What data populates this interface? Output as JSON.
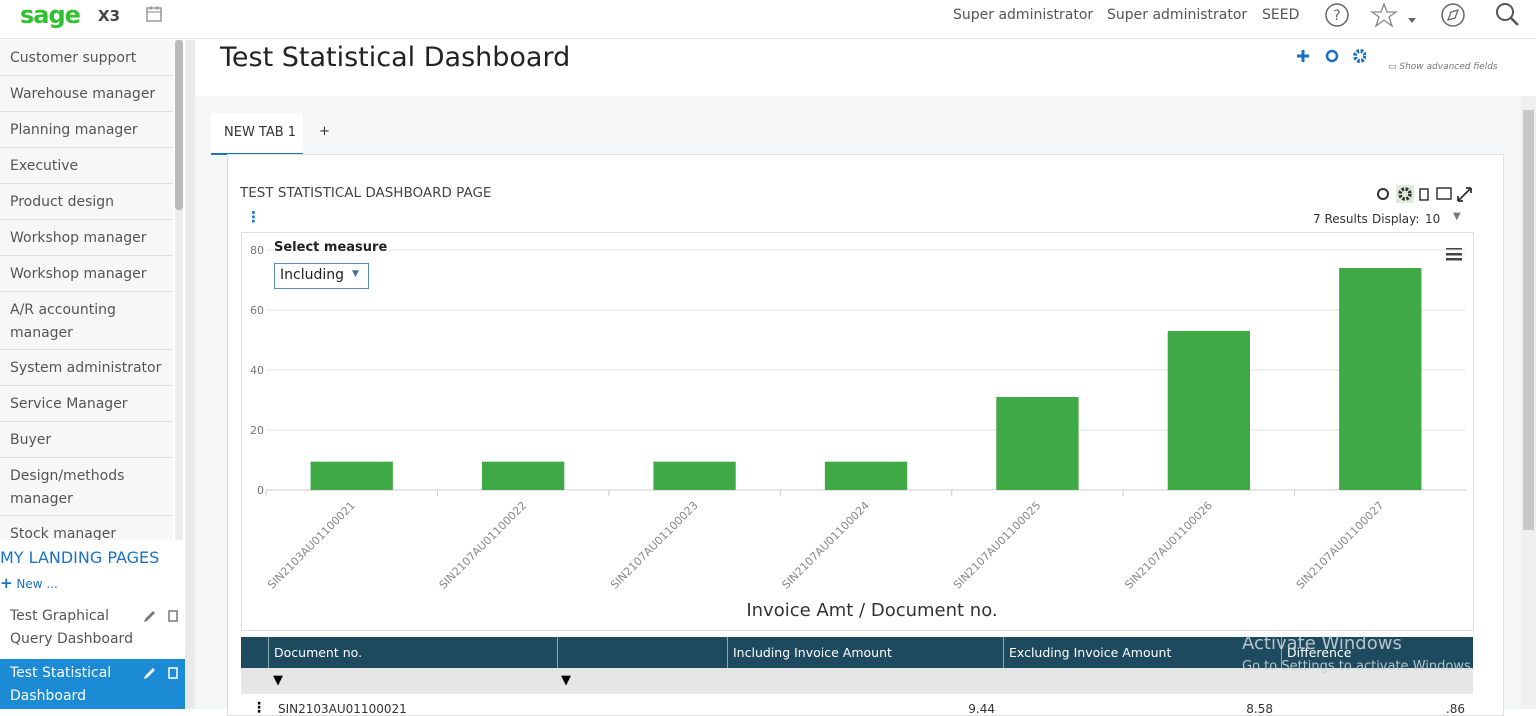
{
  "header": {
    "logo": "sage",
    "product": "X3",
    "user1": "Super administrator",
    "user2": "Super administrator",
    "folder": "SEED"
  },
  "sidebar": {
    "items": [
      "Customer support",
      "Warehouse manager",
      "Planning manager",
      "Executive",
      "Product design",
      "Workshop manager",
      "Workshop manager",
      "A/R accounting manager",
      "System administrator",
      "Service Manager",
      "Buyer",
      "Design/methods manager",
      "Stock manager"
    ],
    "landing_title": "MY LANDING PAGES",
    "new": "New ...",
    "pages": [
      "Test Graphical Query Dashboard",
      "Test Statistical Dashboard"
    ]
  },
  "page": {
    "title": "Test Statistical Dashboard",
    "advanced": "Show advanced fields",
    "tabs": [
      "NEW TAB 1",
      "+"
    ],
    "panel_title": "TEST STATISTICAL DASHBOARD PAGE",
    "results": "7 Results",
    "display_label": "Display:",
    "display_value": "10",
    "measure_label": "Select measure",
    "measure_value": "Including"
  },
  "chart_data": {
    "type": "bar",
    "x_label": "Invoice Amt / Document no.",
    "categories": [
      "SIN2103AU01100021",
      "SIN2107AU01100022",
      "SIN2107AU01100023",
      "SIN2107AU01100024",
      "SIN2107AU01100025",
      "SIN2107AU01100026",
      "SIN2107AU01100027"
    ],
    "values": [
      9.44,
      9.44,
      9.44,
      9.44,
      31,
      53,
      74
    ],
    "color": "#3faa45",
    "ylim": [
      0,
      80
    ],
    "yticks": [
      0,
      20,
      40,
      60,
      80
    ],
    "grid": true
  },
  "table": {
    "columns": [
      "Document no.",
      "Including Invoice Amount",
      "Excluding Invoice Amount",
      "Difference"
    ],
    "rows": [
      [
        "SIN2103AU01100021",
        "9.44",
        "8.58",
        ".86"
      ]
    ]
  },
  "watermark": {
    "title": "Activate Windows",
    "text": "Go to Settings to activate Windows."
  }
}
